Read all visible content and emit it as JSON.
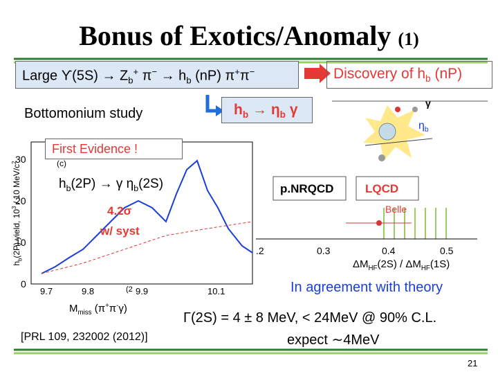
{
  "title": {
    "main": "Bonus of Exotics/Anomaly",
    "suffix": "(1)"
  },
  "process": [
    "Large ϒ(5S) → Z",
    {
      "sub": "b"
    },
    {
      "sup": "+"
    },
    " π",
    {
      "sup": "−"
    },
    " → h",
    {
      "sub": "b"
    },
    " (nP) π",
    {
      "sup": "+"
    },
    "π",
    {
      "sup": "−"
    }
  ],
  "discovery": [
    "Discovery of h",
    {
      "sub": "b"
    },
    " (nP)"
  ],
  "bottomonium": "Bottomonium  study",
  "decay": [
    "h",
    {
      "sub": "b"
    },
    " → η",
    {
      "sub": "b"
    },
    " γ"
  ],
  "diagram": {
    "gamma": "γ",
    "etab": [
      "η",
      {
        "sub": "b"
      }
    ]
  },
  "evidence": "First Evidence !",
  "left_plot": {
    "panel": "(c)",
    "ylabel": [
      "h",
      {
        "sub": "b"
      },
      "(2P) yield, 10",
      {
        "sup": "3"
      },
      " / 10 MeV/c",
      {
        "sup": "2"
      }
    ],
    "yticks": [
      "30",
      "20",
      "10",
      "0"
    ],
    "xticks": [
      "9.7",
      "9.8",
      "9.9",
      "10.1"
    ],
    "stray": "(2",
    "xlabel": [
      "M",
      {
        "sub": "miss"
      },
      " (π",
      {
        "sup": "+"
      },
      "π",
      {
        "sup": "-"
      },
      "γ)"
    ],
    "process": [
      "h",
      {
        "sub": "b"
      },
      "(2P) → γ η",
      {
        "sub": "b"
      },
      "(2S)"
    ],
    "significance": "4.2σ",
    "note": "w/ syst"
  },
  "reference": "[PRL 109, 232002 (2012)]",
  "right_plot": {
    "models": [
      "p.NRQCD",
      "LQCD"
    ],
    "experiment": "Belle",
    "xticks": [
      ".2",
      "0.3",
      "0.4",
      "0.5"
    ],
    "xlabel": [
      "ΔM",
      {
        "sub": "HF"
      },
      "(2S) / ΔM",
      {
        "sub": "HF"
      },
      "(1S)"
    ]
  },
  "agreement": "In agreement with theory",
  "width": "Γ(2S) = 4 ± 8 MeV,  < 24MeV @ 90% C.L.",
  "expect": "expect ∼4MeV",
  "page": "21"
}
